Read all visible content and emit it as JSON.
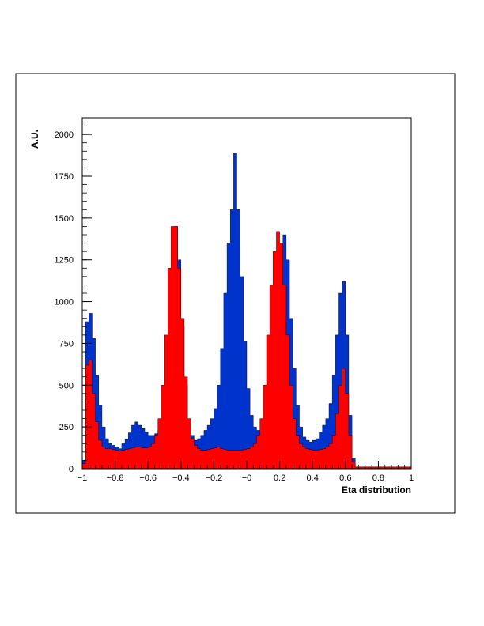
{
  "chart_data": {
    "type": "area",
    "title": "",
    "xlabel": "Eta distribution",
    "ylabel": "A.U.",
    "xlim": [
      -1,
      1
    ],
    "ylim": [
      0,
      2100
    ],
    "grid": false,
    "legend": "none",
    "x_ticks": [
      -1,
      -0.8,
      -0.6,
      -0.4,
      -0.2,
      0,
      0.2,
      0.4,
      0.6,
      0.8,
      1
    ],
    "x_tick_labels": [
      "−1",
      "−0.8",
      "−0.6",
      "−0.4",
      "−0.2",
      "−0",
      "0.2",
      "0.4",
      "0.6",
      "0.8",
      "1"
    ],
    "y_ticks": [
      0,
      250,
      500,
      750,
      1000,
      1250,
      1500,
      1750,
      2000
    ],
    "y_tick_labels": [
      "0",
      "250",
      "500",
      "750",
      "1000",
      "1250",
      "1500",
      "1750",
      "2000"
    ],
    "series": [
      {
        "color": "#0033cc",
        "x": [
          -0.99,
          -0.97,
          -0.95,
          -0.93,
          -0.91,
          -0.89,
          -0.87,
          -0.85,
          -0.83,
          -0.81,
          -0.79,
          -0.77,
          -0.75,
          -0.73,
          -0.71,
          -0.69,
          -0.67,
          -0.65,
          -0.63,
          -0.61,
          -0.59,
          -0.57,
          -0.55,
          -0.53,
          -0.51,
          -0.49,
          -0.47,
          -0.45,
          -0.43,
          -0.41,
          -0.39,
          -0.37,
          -0.35,
          -0.33,
          -0.31,
          -0.29,
          -0.27,
          -0.25,
          -0.23,
          -0.21,
          -0.19,
          -0.17,
          -0.15,
          -0.13,
          -0.11,
          -0.09,
          -0.07,
          -0.05,
          -0.03,
          -0.01,
          0.01,
          0.03,
          0.05,
          0.07,
          0.09,
          0.11,
          0.13,
          0.15,
          0.17,
          0.19,
          0.21,
          0.23,
          0.25,
          0.27,
          0.29,
          0.31,
          0.33,
          0.35,
          0.37,
          0.39,
          0.41,
          0.43,
          0.45,
          0.47,
          0.49,
          0.51,
          0.53,
          0.55,
          0.57,
          0.59,
          0.61,
          0.63,
          0.65,
          0.67,
          0.69,
          0.71,
          0.73,
          0.75,
          0.77,
          0.79,
          0.81,
          0.83,
          0.85,
          0.87,
          0.89,
          0.91,
          0.93,
          0.95,
          0.97,
          0.99
        ],
        "y": [
          50,
          880,
          930,
          780,
          560,
          380,
          250,
          180,
          150,
          140,
          130,
          120,
          150,
          175,
          215,
          260,
          280,
          260,
          240,
          220,
          200,
          200,
          210,
          230,
          300,
          450,
          800,
          1200,
          1450,
          1250,
          850,
          500,
          280,
          200,
          170,
          180,
          200,
          230,
          260,
          300,
          360,
          500,
          720,
          1050,
          1350,
          1550,
          1890,
          1550,
          1150,
          760,
          480,
          320,
          250,
          230,
          220,
          240,
          280,
          330,
          500,
          800,
          1220,
          1400,
          1250,
          900,
          600,
          380,
          250,
          190,
          170,
          160,
          170,
          180,
          220,
          260,
          300,
          390,
          560,
          800,
          1050,
          1120,
          800,
          320,
          60,
          10,
          10,
          10,
          10,
          10,
          10,
          10,
          10,
          10,
          10,
          10,
          10,
          10,
          10,
          10,
          10,
          10
        ]
      },
      {
        "color": "#ff0000",
        "x": [
          -0.99,
          -0.97,
          -0.95,
          -0.93,
          -0.91,
          -0.89,
          -0.87,
          -0.85,
          -0.83,
          -0.81,
          -0.79,
          -0.77,
          -0.75,
          -0.73,
          -0.71,
          -0.69,
          -0.67,
          -0.65,
          -0.63,
          -0.61,
          -0.59,
          -0.57,
          -0.55,
          -0.53,
          -0.51,
          -0.49,
          -0.47,
          -0.45,
          -0.43,
          -0.41,
          -0.39,
          -0.37,
          -0.35,
          -0.33,
          -0.31,
          -0.29,
          -0.27,
          -0.25,
          -0.23,
          -0.21,
          -0.19,
          -0.17,
          -0.15,
          -0.13,
          -0.11,
          -0.09,
          -0.07,
          -0.05,
          -0.03,
          -0.01,
          0.01,
          0.03,
          0.05,
          0.07,
          0.09,
          0.11,
          0.13,
          0.15,
          0.17,
          0.19,
          0.21,
          0.23,
          0.25,
          0.27,
          0.29,
          0.31,
          0.33,
          0.35,
          0.37,
          0.39,
          0.41,
          0.43,
          0.45,
          0.47,
          0.49,
          0.51,
          0.53,
          0.55,
          0.57,
          0.59,
          0.61,
          0.63,
          0.65,
          0.67,
          0.69,
          0.71,
          0.73,
          0.75,
          0.77,
          0.79,
          0.81,
          0.83,
          0.85,
          0.87,
          0.89,
          0.91,
          0.93,
          0.95,
          0.97,
          0.99
        ],
        "y": [
          30,
          620,
          650,
          450,
          280,
          170,
          130,
          120,
          120,
          115,
          110,
          105,
          110,
          115,
          120,
          125,
          130,
          130,
          125,
          125,
          130,
          150,
          200,
          300,
          500,
          800,
          1200,
          1450,
          1450,
          1200,
          900,
          550,
          300,
          180,
          140,
          120,
          110,
          110,
          115,
          120,
          125,
          130,
          120,
          115,
          110,
          110,
          110,
          110,
          110,
          115,
          120,
          130,
          150,
          200,
          300,
          500,
          800,
          1100,
          1300,
          1420,
          1350,
          1100,
          800,
          500,
          300,
          200,
          150,
          130,
          120,
          115,
          110,
          110,
          115,
          120,
          130,
          150,
          200,
          330,
          500,
          600,
          450,
          200,
          40,
          10,
          10,
          10,
          10,
          10,
          10,
          10,
          10,
          10,
          10,
          10,
          10,
          10,
          10,
          10,
          10,
          10
        ]
      }
    ]
  }
}
